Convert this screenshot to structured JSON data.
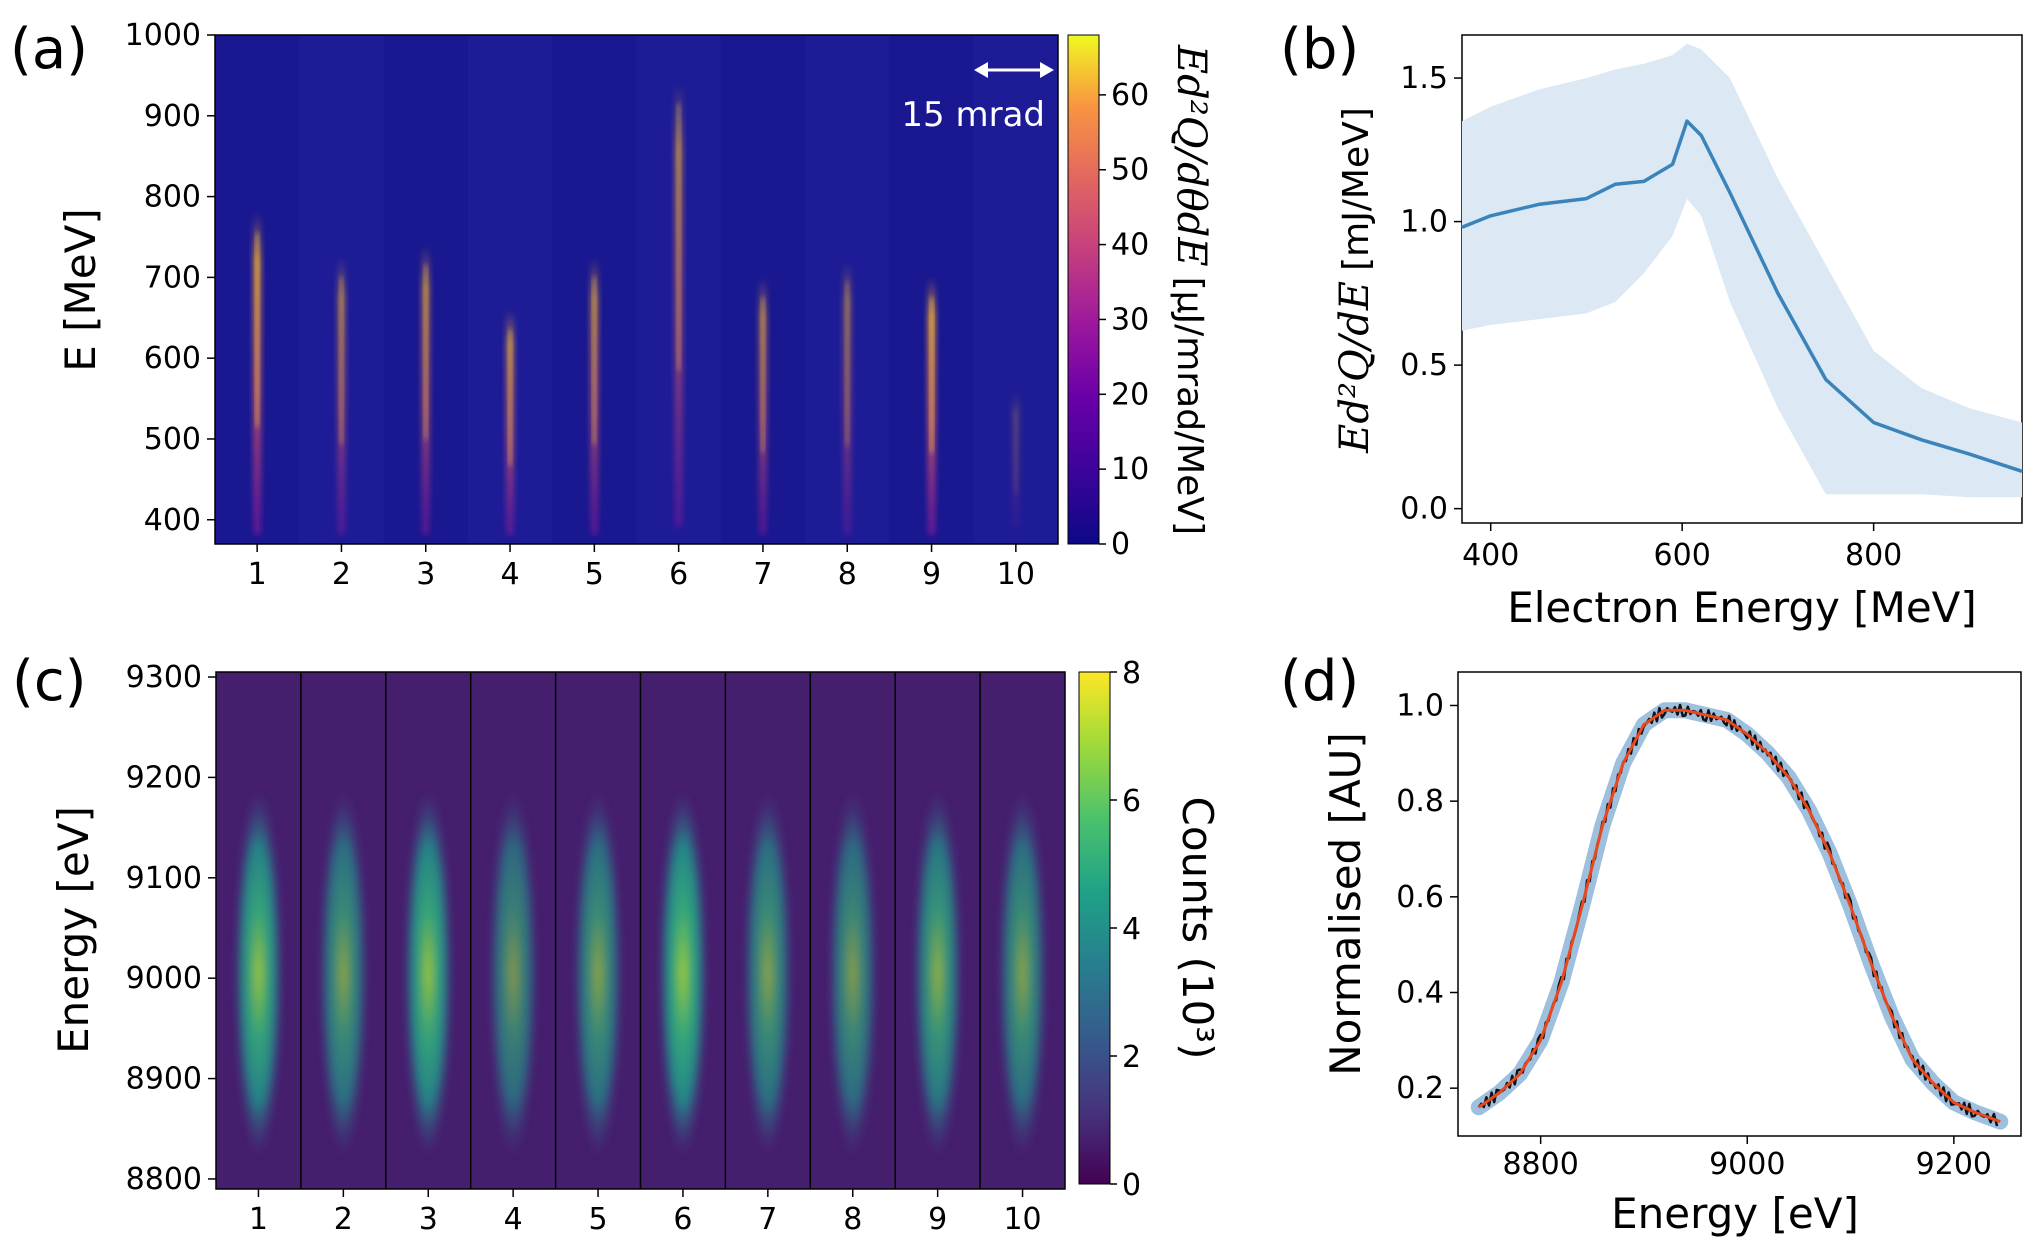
{
  "chart_data": [
    {
      "id": "a",
      "panel_label": "(a)",
      "type": "heatmap",
      "ylabel": "E [MeV]",
      "xticks": [
        "1",
        "2",
        "3",
        "4",
        "5",
        "6",
        "7",
        "8",
        "9",
        "10"
      ],
      "yticks": [
        "400",
        "500",
        "600",
        "700",
        "800",
        "900",
        "1000"
      ],
      "ylim": [
        370,
        1000
      ],
      "annotation": "15 mrad",
      "colorbar": {
        "label_math": "Ed²Q/dθdE",
        "label_units": "[μJ/mrad/MeV]",
        "ticks": [
          "0",
          "10",
          "20",
          "30",
          "40",
          "50",
          "60"
        ],
        "range": [
          0,
          68
        ],
        "colormap": "plasma"
      },
      "shots": [
        {
          "shot": 1,
          "e_min": 380,
          "e_max": 780,
          "intensity": 0.85
        },
        {
          "shot": 2,
          "e_min": 380,
          "e_max": 725,
          "intensity": 0.6
        },
        {
          "shot": 3,
          "e_min": 380,
          "e_max": 740,
          "intensity": 0.7
        },
        {
          "shot": 4,
          "e_min": 380,
          "e_max": 660,
          "intensity": 0.75
        },
        {
          "shot": 5,
          "e_min": 380,
          "e_max": 725,
          "intensity": 0.7
        },
        {
          "shot": 6,
          "e_min": 390,
          "e_max": 940,
          "intensity": 0.65
        },
        {
          "shot": 7,
          "e_min": 380,
          "e_max": 700,
          "intensity": 0.65
        },
        {
          "shot": 8,
          "e_min": 380,
          "e_max": 720,
          "intensity": 0.5
        },
        {
          "shot": 9,
          "e_min": 380,
          "e_max": 700,
          "intensity": 0.9
        },
        {
          "shot": 10,
          "e_min": 390,
          "e_max": 560,
          "intensity": 0.2
        }
      ]
    },
    {
      "id": "b",
      "panel_label": "(b)",
      "type": "line",
      "xlabel": "Electron Energy [MeV]",
      "ylabel_math": "Ed²Q/dE",
      "ylabel_units": "[mJ/MeV]",
      "xticks": [
        "400",
        "600",
        "800"
      ],
      "yticks": [
        "0.0",
        "0.5",
        "1.0",
        "1.5"
      ],
      "xlim": [
        370,
        955
      ],
      "ylim": [
        -0.05,
        1.65
      ],
      "series": [
        {
          "name": "mean",
          "x": [
            370,
            400,
            450,
            500,
            530,
            560,
            590,
            605,
            620,
            650,
            700,
            750,
            800,
            850,
            900,
            955
          ],
          "y": [
            0.98,
            1.02,
            1.06,
            1.08,
            1.13,
            1.14,
            1.2,
            1.35,
            1.3,
            1.1,
            0.75,
            0.45,
            0.3,
            0.24,
            0.19,
            0.13
          ]
        }
      ],
      "band": {
        "x": [
          370,
          400,
          450,
          500,
          530,
          560,
          590,
          605,
          620,
          650,
          700,
          750,
          800,
          850,
          900,
          955
        ],
        "upper": [
          1.35,
          1.4,
          1.46,
          1.5,
          1.53,
          1.55,
          1.58,
          1.62,
          1.6,
          1.5,
          1.15,
          0.85,
          0.55,
          0.42,
          0.35,
          0.3
        ],
        "lower": [
          0.62,
          0.64,
          0.66,
          0.68,
          0.72,
          0.82,
          0.95,
          1.08,
          1.02,
          0.72,
          0.35,
          0.05,
          0.05,
          0.05,
          0.04,
          0.04
        ]
      }
    },
    {
      "id": "c",
      "panel_label": "(c)",
      "type": "heatmap",
      "ylabel": "Energy [eV]",
      "xticks": [
        "1",
        "2",
        "3",
        "4",
        "5",
        "6",
        "7",
        "8",
        "9",
        "10"
      ],
      "yticks": [
        "8800",
        "8900",
        "9000",
        "9100",
        "9200",
        "9300"
      ],
      "ylim": [
        8790,
        9305
      ],
      "colorbar": {
        "label": "Counts (10³)",
        "ticks": [
          "0",
          "2",
          "4",
          "6",
          "8"
        ],
        "range": [
          0,
          8
        ],
        "colormap": "viridis"
      },
      "shots": [
        {
          "shot": 1,
          "peak": 0.8
        },
        {
          "shot": 2,
          "peak": 0.55
        },
        {
          "shot": 3,
          "peak": 0.8
        },
        {
          "shot": 4,
          "peak": 0.45
        },
        {
          "shot": 5,
          "peak": 0.55
        },
        {
          "shot": 6,
          "peak": 0.85
        },
        {
          "shot": 7,
          "peak": 0.55
        },
        {
          "shot": 8,
          "peak": 0.5
        },
        {
          "shot": 9,
          "peak": 0.65
        },
        {
          "shot": 10,
          "peak": 0.55
        }
      ]
    },
    {
      "id": "d",
      "panel_label": "(d)",
      "type": "line",
      "xlabel": "Energy [eV]",
      "ylabel": "Normalised [AU]",
      "xticks": [
        "8800",
        "9000",
        "9200"
      ],
      "yticks": [
        "0.2",
        "0.4",
        "0.6",
        "0.8",
        "1.0"
      ],
      "xlim": [
        8720,
        9265
      ],
      "ylim": [
        0.1,
        1.07
      ],
      "series": [
        {
          "name": "fit",
          "x": [
            8740,
            8760,
            8780,
            8800,
            8820,
            8840,
            8860,
            8880,
            8900,
            8920,
            8940,
            8960,
            8980,
            9000,
            9020,
            9040,
            9060,
            9080,
            9100,
            9120,
            9140,
            9160,
            9180,
            9200,
            9220,
            9245
          ],
          "y": [
            0.16,
            0.19,
            0.23,
            0.3,
            0.42,
            0.58,
            0.75,
            0.88,
            0.96,
            0.99,
            0.99,
            0.98,
            0.97,
            0.94,
            0.9,
            0.85,
            0.78,
            0.69,
            0.58,
            0.46,
            0.35,
            0.26,
            0.21,
            0.17,
            0.15,
            0.13
          ]
        }
      ]
    }
  ]
}
